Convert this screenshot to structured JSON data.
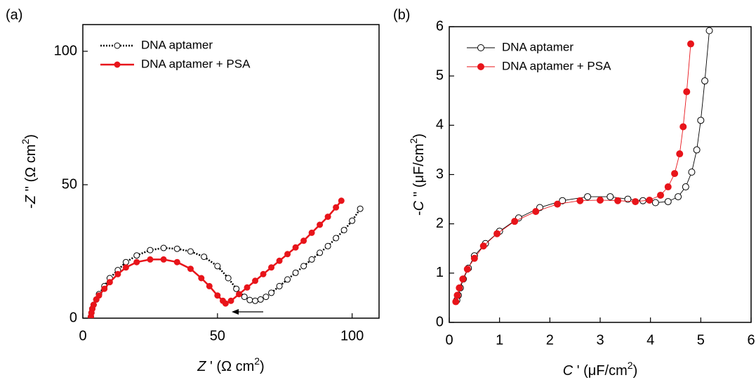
{
  "chart_data": [
    {
      "type": "scatter",
      "panel_label": "(a)",
      "xlabel": {
        "var": "Z",
        "mid": " ' (Ω cm",
        "sup": "2",
        "post": ")"
      },
      "ylabel": {
        "pre": "-",
        "var": "Z",
        "mid": " '' (Ω cm",
        "sup": "2",
        "post": ")"
      },
      "xlim": [
        0,
        110
      ],
      "ylim": [
        0,
        110
      ],
      "xticks": [
        0,
        50,
        100
      ],
      "yticks": [
        0,
        50,
        100
      ],
      "legend": "upper left",
      "line": "thick",
      "series": [
        {
          "name": "DNA aptamer",
          "color": "#000000",
          "marker": "open",
          "dash": "dotted",
          "x": [
            3,
            3.2,
            3.5,
            4,
            5,
            6,
            8,
            10,
            13,
            16,
            20,
            25,
            30,
            35,
            40,
            45,
            50,
            54,
            57,
            60,
            62,
            64,
            66,
            68,
            70,
            73,
            76,
            79,
            82,
            85,
            88,
            91,
            94,
            97,
            100,
            103
          ],
          "values": [
            0.5,
            2,
            3.5,
            5,
            7,
            9,
            12,
            15,
            18,
            21,
            23.5,
            25.5,
            26.3,
            26,
            25,
            23,
            19.5,
            15,
            11,
            8,
            6.8,
            6.5,
            7,
            8,
            9.5,
            12,
            14.5,
            17,
            19.5,
            22,
            24.5,
            27,
            30,
            33,
            36.5,
            41
          ]
        },
        {
          "name": "DNA aptamer + PSA",
          "color": "#e8141a",
          "marker": "filled",
          "dash": "solid",
          "x": [
            3,
            3.2,
            3.5,
            4,
            5,
            6,
            8,
            10,
            13,
            16,
            20,
            25,
            30,
            35,
            40,
            44,
            47,
            50,
            52,
            53,
            55,
            58,
            61,
            64,
            67,
            70,
            73,
            76,
            79,
            82,
            85,
            88,
            91,
            94,
            96
          ],
          "values": [
            0.5,
            2,
            3.5,
            5,
            7,
            8.5,
            11,
            13.5,
            16.5,
            19,
            21,
            22,
            22,
            21,
            18.5,
            15,
            12,
            8.5,
            6.5,
            5.5,
            6.5,
            9,
            11.5,
            14,
            16.5,
            19,
            21.5,
            24,
            26.5,
            29,
            32,
            35,
            38,
            41.5,
            44
          ]
        }
      ]
    },
    {
      "type": "scatter",
      "panel_label": "(b)",
      "xlabel": {
        "var": "C",
        "mid": " ' (μF/cm",
        "sup": "2",
        "post": ")"
      },
      "ylabel": {
        "pre": "-",
        "var": "C",
        "mid": " '' (μF/cm",
        "sup": "2",
        "post": ")"
      },
      "xlim": [
        0,
        6
      ],
      "ylim": [
        0,
        6
      ],
      "xticks": [
        0,
        1,
        2,
        3,
        4,
        5,
        6
      ],
      "yticks": [
        0,
        1,
        2,
        3,
        4,
        5,
        6
      ],
      "legend": "upper left",
      "line": "thin",
      "series": [
        {
          "name": "DNA aptamer",
          "color": "#000000",
          "marker": "open",
          "dash": "solid",
          "x": [
            0.15,
            0.18,
            0.22,
            0.28,
            0.38,
            0.5,
            0.72,
            1,
            1.38,
            1.8,
            2.25,
            2.75,
            3.2,
            3.55,
            3.85,
            4.1,
            4.35,
            4.55,
            4.7,
            4.82,
            4.92,
            5,
            5.08,
            5.17
          ],
          "values": [
            0.45,
            0.55,
            0.7,
            0.88,
            1.1,
            1.35,
            1.6,
            1.85,
            2.12,
            2.33,
            2.47,
            2.55,
            2.55,
            2.5,
            2.47,
            2.43,
            2.45,
            2.55,
            2.75,
            3.05,
            3.5,
            4.1,
            4.9,
            5.92
          ]
        },
        {
          "name": "DNA aptamer + PSA",
          "color": "#e8141a",
          "marker": "filled",
          "dash": "solid",
          "x": [
            0.13,
            0.16,
            0.2,
            0.27,
            0.36,
            0.5,
            0.68,
            0.95,
            1.3,
            1.72,
            2.15,
            2.6,
            3,
            3.35,
            3.7,
            3.98,
            4.2,
            4.35,
            4.48,
            4.58,
            4.65,
            4.72,
            4.8
          ],
          "values": [
            0.42,
            0.55,
            0.7,
            0.88,
            1.08,
            1.3,
            1.55,
            1.8,
            2.05,
            2.25,
            2.4,
            2.47,
            2.48,
            2.47,
            2.45,
            2.48,
            2.58,
            2.75,
            3.02,
            3.42,
            3.97,
            4.68,
            5.65
          ]
        }
      ]
    }
  ]
}
